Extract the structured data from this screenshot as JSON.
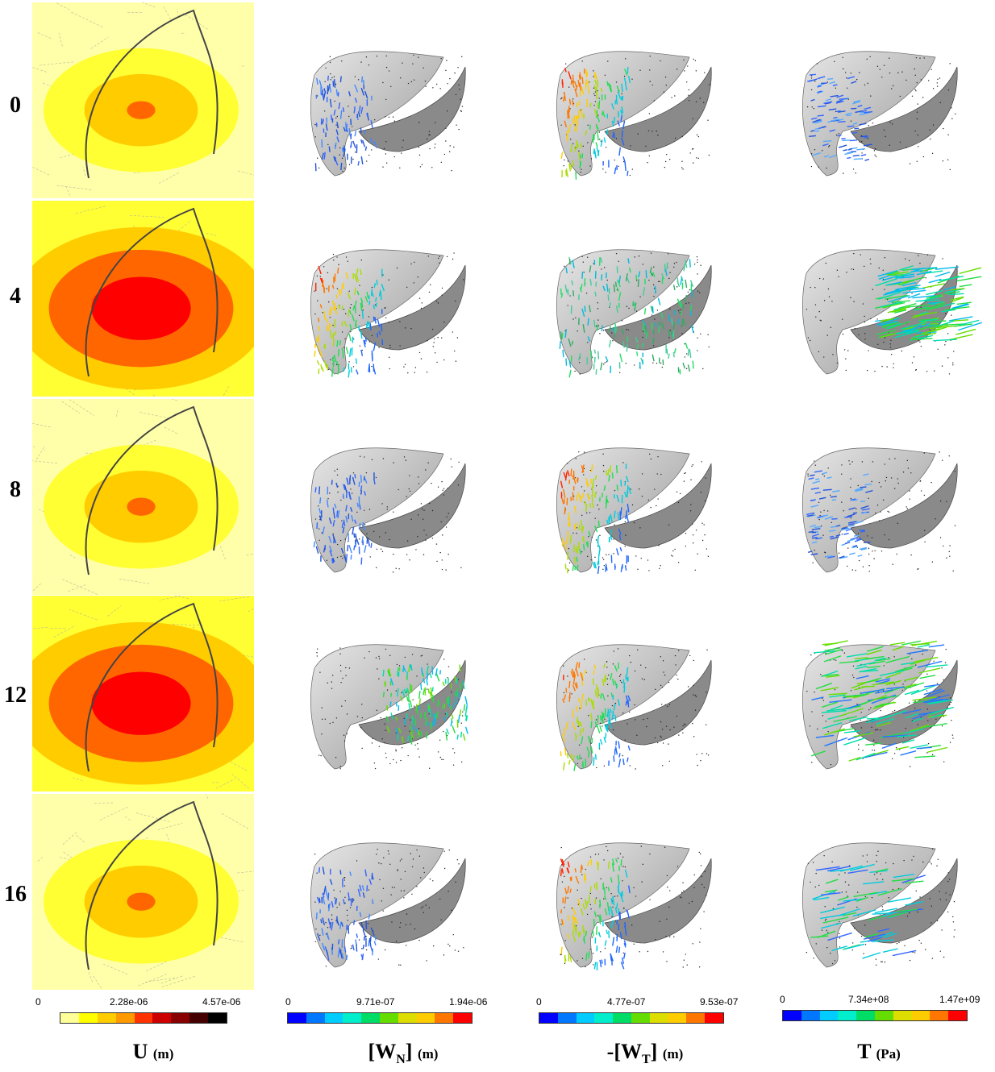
{
  "rows": [
    "0",
    "4",
    "8",
    "12",
    "16"
  ],
  "columns": [
    {
      "title_main": "U",
      "title_unit": "(m)",
      "ticks": [
        "0",
        "2.28e-06",
        "4.57e-06"
      ],
      "colors": [
        "#ffff99",
        "#ffff00",
        "#ffcc00",
        "#ff9900",
        "#ff3300",
        "#cc0000",
        "#880000",
        "#440000",
        "#000000"
      ]
    },
    {
      "title_main": "[W",
      "title_sub": "N",
      "title_close": "]",
      "title_unit": "(m)",
      "ticks": [
        "0",
        "9.71e-07",
        "1.94e-06"
      ],
      "colors": [
        "#0000ff",
        "#0077ff",
        "#00ccff",
        "#00eecc",
        "#00dd66",
        "#66dd00",
        "#dddd00",
        "#ffcc00",
        "#ff7700",
        "#ff0000"
      ]
    },
    {
      "title_main": "-[W",
      "title_sub": "T",
      "title_close": "]",
      "title_unit": "(m)",
      "ticks": [
        "0",
        "4.77e-07",
        "9.53e-07"
      ],
      "colors": [
        "#0000ff",
        "#0077ff",
        "#00ccff",
        "#00eecc",
        "#00dd66",
        "#66dd00",
        "#dddd00",
        "#ffcc00",
        "#ff7700",
        "#ff0000"
      ]
    },
    {
      "title_main": "T",
      "title_unit": "(Pa)",
      "ticks": [
        "0",
        "7.34e+08",
        "1.47e+09"
      ],
      "colors": [
        "#0000ff",
        "#0077ff",
        "#00ccff",
        "#00eecc",
        "#00dd66",
        "#66dd00",
        "#dddd00",
        "#ffcc00",
        "#ff7700",
        "#ff0000"
      ]
    }
  ],
  "panels": {
    "U": [
      {
        "bg": "#ffffaa",
        "levels": [
          "#ffff33",
          "#ffcc00",
          "#ff6600"
        ],
        "sizes": [
          0.55,
          0.32,
          0.08
        ]
      },
      {
        "bg": "#ffff33",
        "levels": [
          "#ffcc00",
          "#ff6600",
          "#ff0000"
        ],
        "sizes": [
          0.72,
          0.52,
          0.28
        ]
      },
      {
        "bg": "#ffffaa",
        "levels": [
          "#ffff33",
          "#ffcc00",
          "#ff6600"
        ],
        "sizes": [
          0.55,
          0.32,
          0.08
        ]
      },
      {
        "bg": "#ffff33",
        "levels": [
          "#ffcc00",
          "#ff6600",
          "#ff0000"
        ],
        "sizes": [
          0.72,
          0.52,
          0.28
        ]
      },
      {
        "bg": "#ffffaa",
        "levels": [
          "#ffff33",
          "#ffcc00",
          "#ff6600"
        ],
        "sizes": [
          0.55,
          0.32,
          0.08
        ]
      }
    ],
    "WN": [
      {
        "patch": "blue-edge"
      },
      {
        "patch": "hot-left"
      },
      {
        "patch": "blue-edge"
      },
      {
        "patch": "green-right"
      },
      {
        "patch": "blue-edge"
      }
    ],
    "WT": [
      {
        "patch": "hot-left"
      },
      {
        "patch": "green-all"
      },
      {
        "patch": "hot-left"
      },
      {
        "patch": "hot-left"
      },
      {
        "patch": "hot-left"
      }
    ],
    "T": [
      {
        "patch": "blue-sparse"
      },
      {
        "patch": "green-right"
      },
      {
        "patch": "blue-sparse"
      },
      {
        "patch": "green-left"
      },
      {
        "patch": "green-sparse"
      }
    ]
  }
}
